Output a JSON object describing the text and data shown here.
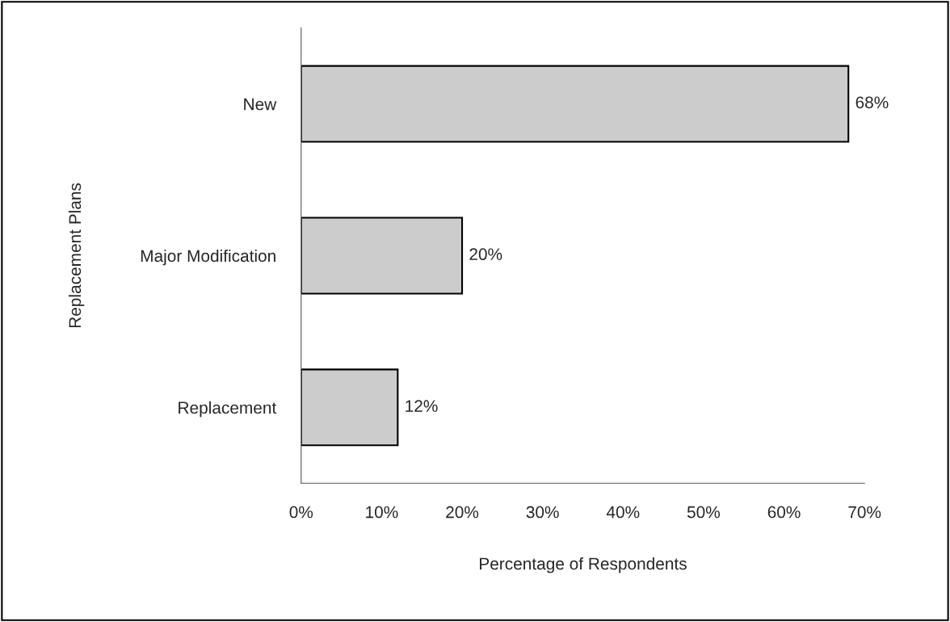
{
  "chart_data": {
    "type": "bar",
    "orientation": "horizontal",
    "categories": [
      "New",
      "Major Modification",
      "Replacement"
    ],
    "values": [
      68,
      20,
      12
    ],
    "value_labels": [
      "68%",
      "20%",
      "12%"
    ],
    "color": "#cccccc",
    "xlim": [
      0,
      70
    ],
    "xticks": [
      {
        "value": 0,
        "label": "0%"
      },
      {
        "value": 10,
        "label": "10%"
      },
      {
        "value": 20,
        "label": "20%"
      },
      {
        "value": 30,
        "label": "30%"
      },
      {
        "value": 40,
        "label": "40%"
      },
      {
        "value": 50,
        "label": "50%"
      },
      {
        "value": 60,
        "label": "60%"
      },
      {
        "value": 70,
        "label": "70%"
      }
    ],
    "xlabel": "Percentage of Respondents",
    "ylabel": "Replacement Plans",
    "grid": false
  }
}
